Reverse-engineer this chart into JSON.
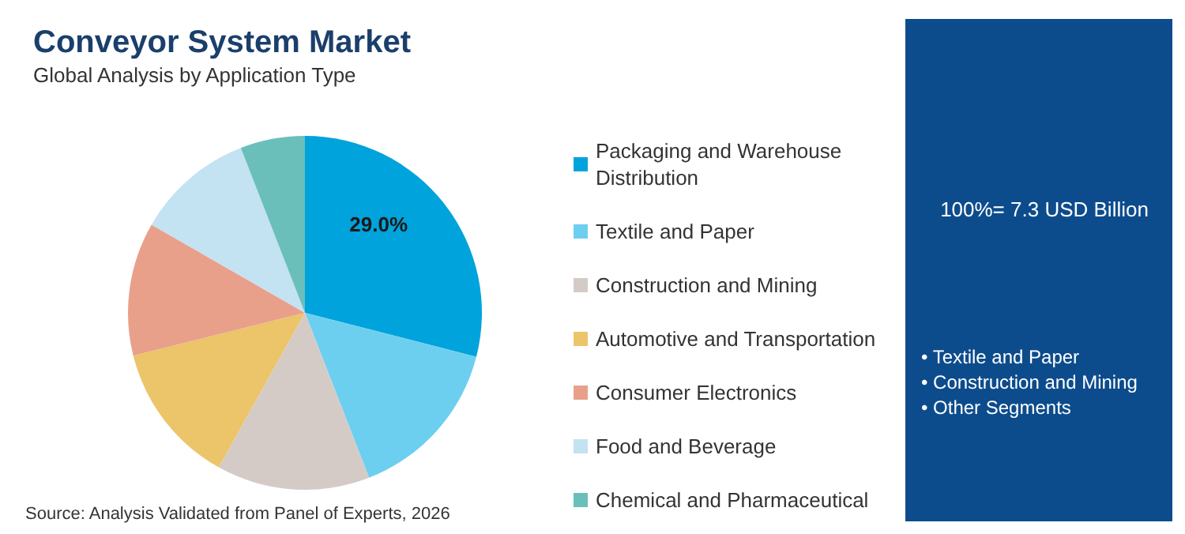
{
  "chart_data": {
    "type": "pie",
    "title": "Conveyor System Market",
    "subtitle": "Global Analysis by Application Type",
    "categories": [
      "Packaging and Warehouse Distribution",
      "Textile and Paper",
      "Construction and Mining",
      "Automotive and Transportation",
      "Consumer Electronics",
      "Food and Beverage",
      "Chemical and Pharmaceutical"
    ],
    "values": [
      29.0,
      15.1,
      14.0,
      13.0,
      12.2,
      10.8,
      5.9
    ],
    "value_labels": [
      "29.0%",
      null,
      null,
      null,
      null,
      null,
      null
    ],
    "colors": [
      "#00a3dc",
      "#6dcff0",
      "#d5cbc6",
      "#ecc46a",
      "#e9a08a",
      "#c3e2f2",
      "#6bbfbb"
    ],
    "legend": "right",
    "annotations": [
      "Source: Analysis Validated from Panel of Experts, 2026",
      "100%= 7.3 USD Billion",
      "• Textile and Paper",
      "• Construction and Mining",
      "• Other Segments"
    ]
  }
}
